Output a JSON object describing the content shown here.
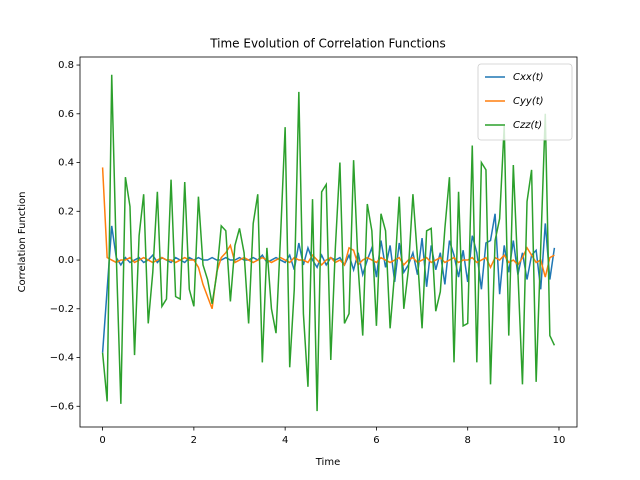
{
  "chart_data": {
    "type": "line",
    "title": "Time Evolution of Correlation Functions",
    "x_label": "Time",
    "y_label": "Correlation Function",
    "x": [
      0.0,
      0.1,
      0.2,
      0.3,
      0.4,
      0.5,
      0.6,
      0.7,
      0.8,
      0.9,
      1.0,
      1.1,
      1.2,
      1.3,
      1.4,
      1.5,
      1.6,
      1.7,
      1.8,
      1.9,
      2.0,
      2.1,
      2.2,
      2.3,
      2.4,
      2.5,
      2.6,
      2.7,
      2.8,
      2.9,
      3.0,
      3.1,
      3.2,
      3.3,
      3.4,
      3.5,
      3.6,
      3.7,
      3.8,
      3.9,
      4.0,
      4.1,
      4.2,
      4.3,
      4.4,
      4.5,
      4.6,
      4.7,
      4.8,
      4.9,
      5.0,
      5.1,
      5.2,
      5.3,
      5.4,
      5.5,
      5.6,
      5.7,
      5.8,
      5.9,
      6.0,
      6.1,
      6.2,
      6.3,
      6.4,
      6.5,
      6.6,
      6.7,
      6.8,
      6.9,
      7.0,
      7.1,
      7.2,
      7.3,
      7.4,
      7.5,
      7.6,
      7.7,
      7.8,
      7.9,
      8.0,
      8.1,
      8.2,
      8.3,
      8.4,
      8.5,
      8.6,
      8.7,
      8.8,
      8.9,
      9.0,
      9.1,
      9.2,
      9.3,
      9.4,
      9.5,
      9.6,
      9.7,
      9.8,
      9.9
    ],
    "series": [
      {
        "name": "Cxx(t)",
        "color": "#1f77b4",
        "values": [
          -0.38,
          -0.12,
          0.14,
          0.01,
          -0.02,
          0.01,
          -0.01,
          0.0,
          0.01,
          -0.01,
          0.0,
          0.02,
          -0.01,
          0.01,
          0.0,
          -0.01,
          0.01,
          0.0,
          -0.01,
          0.01,
          0.0,
          0.01,
          0.0,
          0.0,
          0.01,
          0.0,
          0.0,
          0.01,
          0.0,
          0.0,
          0.01,
          0.0,
          0.0,
          0.01,
          0.0,
          0.02,
          -0.01,
          0.0,
          0.01,
          0.0,
          -0.01,
          0.02,
          -0.04,
          0.07,
          -0.02,
          0.05,
          0.0,
          -0.03,
          0.02,
          -0.02,
          0.01,
          0.0,
          0.01,
          -0.02,
          0.02,
          -0.04,
          0.03,
          -0.06,
          0.0,
          0.05,
          -0.07,
          0.08,
          -0.03,
          0.06,
          -0.09,
          0.07,
          -0.05,
          -0.02,
          0.03,
          -0.06,
          0.09,
          -0.11,
          0.06,
          -0.04,
          0.03,
          -0.1,
          0.08,
          0.02,
          -0.07,
          0.04,
          -0.09,
          0.1,
          0.03,
          -0.12,
          0.07,
          0.08,
          0.19,
          -0.14,
          0.06,
          -0.05,
          0.08,
          -0.06,
          0.03,
          -0.08,
          0.02,
          0.04,
          -0.12,
          0.15,
          -0.08,
          0.05
        ]
      },
      {
        "name": "Cyy(t)",
        "color": "#ff7f0e",
        "values": [
          0.38,
          0.01,
          0.0,
          -0.01,
          0.0,
          0.0,
          0.01,
          -0.01,
          0.0,
          0.01,
          0.0,
          -0.01,
          0.0,
          0.01,
          0.0,
          0.0,
          -0.01,
          0.0,
          0.01,
          0.0,
          0.0,
          -0.03,
          -0.1,
          -0.15,
          -0.2,
          -0.05,
          0.01,
          0.03,
          0.06,
          -0.01,
          0.0,
          0.01,
          0.0,
          -0.01,
          0.0,
          0.01,
          0.0,
          -0.01,
          0.0,
          0.01,
          0.0,
          -0.01,
          0.01,
          0.0,
          0.0,
          -0.01,
          0.02,
          0.0,
          -0.02,
          0.0,
          0.01,
          -0.01,
          0.0,
          -0.02,
          0.05,
          0.04,
          -0.02,
          0.0,
          0.01,
          0.0,
          -0.01,
          0.01,
          0.0,
          -0.01,
          0.0,
          0.01,
          -0.02,
          0.0,
          0.01,
          -0.01,
          0.0,
          0.01,
          -0.01,
          0.0,
          0.01,
          -0.01,
          0.0,
          0.01,
          -0.01,
          0.0,
          0.0,
          0.01,
          -0.01,
          0.0,
          0.01,
          -0.03,
          0.01,
          0.0,
          0.02,
          -0.01,
          0.0,
          -0.02,
          0.01,
          0.05,
          0.02,
          -0.01,
          0.0,
          -0.07,
          0.01,
          0.02
        ]
      },
      {
        "name": "Czz(t)",
        "color": "#2ca02c",
        "values": [
          -0.38,
          -0.58,
          0.76,
          0.02,
          -0.59,
          0.34,
          0.22,
          -0.39,
          0.1,
          0.27,
          -0.26,
          -0.05,
          0.28,
          -0.19,
          -0.16,
          0.33,
          -0.15,
          -0.16,
          0.32,
          -0.12,
          -0.19,
          0.26,
          -0.02,
          -0.08,
          -0.18,
          -0.06,
          0.14,
          0.12,
          -0.17,
          0.06,
          0.13,
          0.03,
          -0.26,
          0.15,
          0.27,
          -0.42,
          0.05,
          -0.2,
          -0.3,
          0.1,
          0.545,
          -0.44,
          -0.12,
          0.69,
          -0.22,
          -0.52,
          0.25,
          -0.62,
          0.28,
          0.31,
          -0.41,
          0.05,
          0.4,
          -0.26,
          -0.22,
          0.41,
          -0.03,
          -0.31,
          0.23,
          0.12,
          -0.27,
          0.19,
          0.12,
          -0.28,
          -0.05,
          0.26,
          -0.2,
          -0.04,
          0.27,
          0.01,
          -0.28,
          0.12,
          0.13,
          -0.21,
          -0.13,
          0.13,
          0.34,
          -0.42,
          0.28,
          -0.27,
          -0.26,
          0.47,
          -0.42,
          0.4,
          0.37,
          -0.51,
          0.08,
          0.17,
          0.55,
          -0.31,
          0.39,
          -0.05,
          -0.51,
          0.24,
          0.37,
          -0.5,
          0.05,
          0.6,
          -0.31,
          -0.35
        ]
      }
    ],
    "xlim": [
      -0.495,
      10.395
    ],
    "ylim": [
      -0.685,
      0.833
    ],
    "xticks": [
      0,
      2,
      4,
      6,
      8,
      10
    ],
    "yticks": [
      {
        "value": -0.6,
        "label": "−0.6"
      },
      {
        "value": -0.4,
        "label": "−0.4"
      },
      {
        "value": -0.2,
        "label": "−0.2"
      },
      {
        "value": 0,
        "label": "0.0"
      },
      0.2,
      0.4,
      0.6,
      0.8
    ],
    "legend": "upper right"
  }
}
